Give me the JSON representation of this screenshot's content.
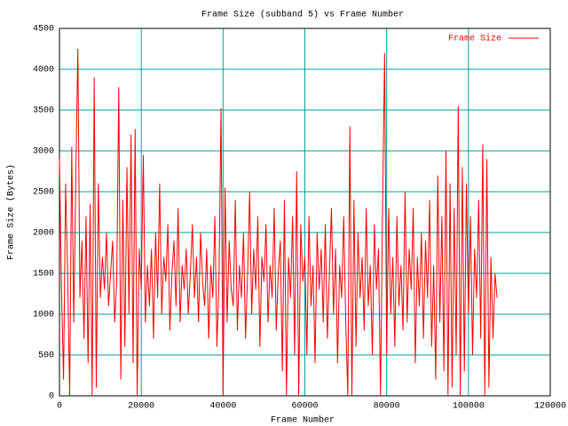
{
  "chart_data": {
    "type": "line",
    "title": "Frame Size (subband 5) vs Frame Number",
    "x_label": "Frame Number",
    "y_label": "Frame Size (Bytes)",
    "xlim": [
      0,
      120000
    ],
    "ylim": [
      0,
      4500
    ],
    "xticks": [
      0,
      20000,
      40000,
      60000,
      80000,
      100000,
      120000
    ],
    "yticks": [
      0,
      500,
      1000,
      1500,
      2000,
      2500,
      3000,
      3500,
      4000,
      4500
    ],
    "grid": true,
    "grid_color": "#00a0a0",
    "legend": "top-right",
    "x": [
      0,
      500,
      1000,
      1500,
      2000,
      2500,
      3000,
      3500,
      4000,
      4500,
      5000,
      5500,
      6000,
      6500,
      7000,
      7500,
      8000,
      8500,
      9000,
      9500,
      10000,
      10500,
      11000,
      11500,
      12000,
      12500,
      13000,
      13500,
      14000,
      14500,
      15000,
      15500,
      16000,
      16500,
      17000,
      17500,
      18000,
      18500,
      19000,
      19500,
      20000,
      20500,
      21000,
      21500,
      22000,
      22500,
      23000,
      23500,
      24000,
      24500,
      25000,
      25500,
      26000,
      26500,
      27000,
      27500,
      28000,
      28500,
      29000,
      29500,
      30000,
      30500,
      31000,
      31500,
      32000,
      32500,
      33000,
      33500,
      34000,
      34500,
      35000,
      35500,
      36000,
      36500,
      37000,
      37500,
      38000,
      38500,
      39000,
      39500,
      40000,
      40500,
      41000,
      41500,
      42000,
      42500,
      43000,
      43500,
      44000,
      44500,
      45000,
      45500,
      46000,
      46500,
      47000,
      47500,
      48000,
      48500,
      49000,
      49500,
      50000,
      50500,
      51000,
      51500,
      52000,
      52500,
      53000,
      53500,
      54000,
      54500,
      55000,
      55500,
      56000,
      56500,
      57000,
      57500,
      58000,
      58500,
      59000,
      59500,
      60000,
      60500,
      61000,
      61500,
      62000,
      62500,
      63000,
      63500,
      64000,
      64500,
      65000,
      65500,
      66000,
      66500,
      67000,
      67500,
      68000,
      68500,
      69000,
      69500,
      70000,
      70500,
      71000,
      71500,
      72000,
      72500,
      73000,
      73500,
      74000,
      74500,
      75000,
      75500,
      76000,
      76500,
      77000,
      77500,
      78000,
      78500,
      79000,
      79500,
      80000,
      80500,
      81000,
      81500,
      82000,
      82500,
      83000,
      83500,
      84000,
      84500,
      85000,
      85500,
      86000,
      86500,
      87000,
      87500,
      88000,
      88500,
      89000,
      89500,
      90000,
      90500,
      91000,
      91500,
      92000,
      92500,
      93000,
      93500,
      94000,
      94500,
      95000,
      95500,
      96000,
      96500,
      97000,
      97500,
      98000,
      98500,
      99000,
      99500,
      100000,
      100500,
      101000,
      101500,
      102000,
      102500,
      103000,
      103500,
      104000,
      104500,
      105000,
      105500,
      106000,
      106500,
      107000
    ],
    "series": [
      {
        "name": "Frame Size",
        "color": "#ff0000",
        "values": [
          2900,
          1300,
          200,
          2600,
          1500,
          0,
          3050,
          900,
          2700,
          4250,
          1200,
          1900,
          700,
          2200,
          400,
          2350,
          0,
          3900,
          100,
          2600,
          1200,
          1700,
          1300,
          2000,
          1100,
          1500,
          1900,
          900,
          1400,
          3780,
          200,
          2400,
          600,
          2800,
          1000,
          3200,
          400,
          3270,
          0,
          1800,
          1300,
          2950,
          900,
          1600,
          1100,
          1800,
          700,
          2000,
          1200,
          2600,
          1000,
          1700,
          1400,
          2100,
          800,
          1500,
          1900,
          1100,
          2300,
          900,
          1600,
          1300,
          1800,
          1000,
          1500,
          2100,
          1200,
          1700,
          900,
          2000,
          1400,
          1100,
          1800,
          700,
          1600,
          1200,
          2200,
          600,
          1400,
          3520,
          0,
          2550,
          900,
          1900,
          1300,
          1100,
          2400,
          800,
          1600,
          1200,
          2000,
          700,
          1500,
          2500,
          1000,
          1800,
          1300,
          2200,
          600,
          1700,
          1400,
          2100,
          900,
          1600,
          1200,
          2300,
          800,
          1500,
          1900,
          300,
          2400,
          0,
          1700,
          1200,
          2200,
          500,
          2750,
          0,
          2100,
          1400,
          1700,
          500,
          2200,
          1100,
          1600,
          400,
          2000,
          1300,
          1800,
          900,
          2100,
          700,
          1500,
          2300,
          1000,
          1800,
          400,
          1600,
          1200,
          2200,
          900,
          0,
          3300,
          0,
          2400,
          600,
          2000,
          1200,
          1700,
          800,
          2300,
          1100,
          1600,
          500,
          2100,
          1300,
          1800,
          0,
          2300,
          4200,
          500,
          2300,
          1000,
          1700,
          600,
          2200,
          1100,
          1600,
          800,
          2500,
          900,
          1800,
          1300,
          2300,
          400,
          1700,
          1100,
          2000,
          700,
          1900,
          1200,
          2400,
          600,
          1600,
          200,
          2700,
          900,
          2200,
          300,
          3000,
          0,
          2600,
          100,
          2300,
          500,
          3550,
          0,
          2800,
          300,
          2600,
          1000,
          2200,
          500,
          1800,
          1200,
          2400,
          700,
          3080,
          0,
          2900,
          100,
          1700,
          700,
          1500,
          1200
        ]
      }
    ]
  }
}
